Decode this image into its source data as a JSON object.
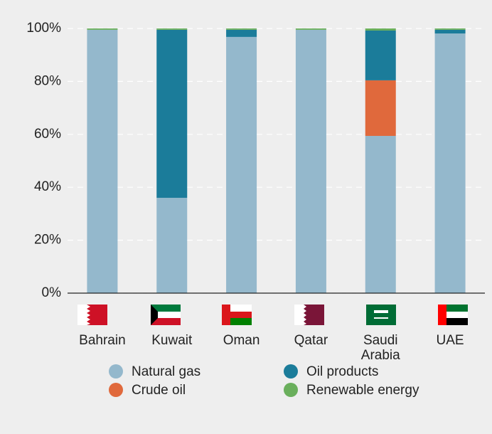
{
  "chart_data": {
    "type": "stacked_bar",
    "categories": [
      "Bahrain",
      "Kuwait",
      "Oman",
      "Qatar",
      "Saudi Arabia",
      "UAE"
    ],
    "series": [
      {
        "name": "Natural gas",
        "color": "#94b8cc",
        "values": [
          99.5,
          36.0,
          96.8,
          99.5,
          59.4,
          98.1
        ]
      },
      {
        "name": "Crude oil",
        "color": "#e0693c",
        "values": [
          0,
          0,
          0,
          0,
          21.0,
          0
        ]
      },
      {
        "name": "Oil products",
        "color": "#1b7c9a",
        "values": [
          0,
          63.5,
          2.7,
          0,
          18.8,
          1.4
        ]
      },
      {
        "name": "Renewable energy",
        "color": "#6aaf5c",
        "values": [
          0.5,
          0.5,
          0.5,
          0.5,
          0.8,
          0.5
        ]
      }
    ],
    "ylim": [
      0,
      100
    ],
    "yticks": [
      {
        "value": 0,
        "label": "0%"
      },
      {
        "value": 20,
        "label": "20%"
      },
      {
        "value": 40,
        "label": "40%"
      },
      {
        "value": 60,
        "label": "60%"
      },
      {
        "value": 80,
        "label": "80%"
      },
      {
        "value": 100,
        "label": "100%"
      }
    ],
    "grid": true
  }
}
